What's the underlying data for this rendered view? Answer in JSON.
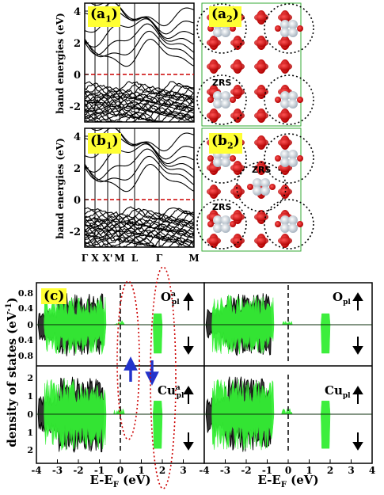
{
  "figure": {
    "panels": {
      "a1": {
        "label": "(a",
        "sub": "1",
        "close": ")"
      },
      "a2": {
        "label": "(a",
        "sub": "2",
        "close": ")"
      },
      "b1": {
        "label": "(b",
        "sub": "1",
        "close": ")"
      },
      "b2": {
        "label": "(b",
        "sub": "2",
        "close": ")"
      },
      "c": {
        "label": "(c)"
      }
    },
    "zrs_label": "ZRS",
    "top": {
      "ylabel": "band energies (eV)",
      "yticks": [
        "4",
        "2",
        "0",
        "-2"
      ],
      "kpoints": [
        "Γ",
        "X",
        "X'",
        "M",
        "L",
        "Γ",
        "M"
      ]
    },
    "bottom": {
      "ylabel": "density of states (eV",
      "ylabel_sup": "-1",
      "ylabel_close": ")",
      "xlabel": "E-E",
      "xlabel_sub": "F",
      "xlabel_unit": " (eV)",
      "xticks_left": [
        "-4",
        "-3",
        "-2",
        "-1",
        "0",
        "1",
        "2",
        "3",
        "4"
      ],
      "xticks_right": [
        "-4",
        "-3",
        "-2",
        "-1",
        "0",
        "1",
        "2",
        "3",
        "4"
      ],
      "o_yticks": [
        "0.8",
        "0.4",
        "0",
        "0.4",
        "0.8"
      ],
      "cu_yticks": [
        "2",
        "1",
        "0",
        "1",
        "2"
      ],
      "o_label_left": "O",
      "o_label_left_sup": "a",
      "o_label_right": "O",
      "o_label_sub": "pl",
      "cu_label_left": "Cu",
      "cu_label_left_sup": "a",
      "cu_label_right": "Cu",
      "cu_label_sub": "pl"
    },
    "colors": {
      "green": "#33ee33",
      "dos_black": "#000000",
      "red_dash": "#cc0000",
      "arrow_blue": "#2233cc",
      "highlight": "#ffff33",
      "oxygen_red": "#dd1111",
      "cu_white": "#e8eef4"
    }
  },
  "chart_data": [
    {
      "type": "line",
      "title": "",
      "panel": "(a1)",
      "ylabel": "band energies (eV)",
      "ylim": [
        -3,
        4.5
      ],
      "yticks": [
        4,
        2,
        0,
        -2
      ],
      "x": [
        "Γ",
        "X",
        "X'",
        "M",
        "L",
        "Γ",
        "M"
      ],
      "reference_line": 0
    },
    {
      "type": "line",
      "title": "",
      "panel": "(b1)",
      "ylabel": "band energies (eV)",
      "ylim": [
        -3,
        4.5
      ],
      "yticks": [
        4,
        2,
        0,
        -2
      ],
      "x": [
        "Γ",
        "X",
        "X'",
        "M",
        "L",
        "Γ",
        "M"
      ],
      "reference_line": 0
    },
    {
      "type": "area",
      "panel": "(c)",
      "xlabel": "E-E_F (eV)",
      "ylabel": "density of states (eV^-1)",
      "xlim": [
        -4,
        4
      ],
      "subplots": [
        {
          "label": "O^a_pl",
          "ylim": [
            -0.9,
            0.9
          ]
        },
        {
          "label": "O_pl",
          "ylim": [
            -0.9,
            0.9
          ]
        },
        {
          "label": "Cu^a_pl",
          "ylim": [
            -2.8,
            2.8
          ]
        },
        {
          "label": "Cu_pl",
          "ylim": [
            -2.8,
            2.8
          ]
        }
      ]
    }
  ]
}
